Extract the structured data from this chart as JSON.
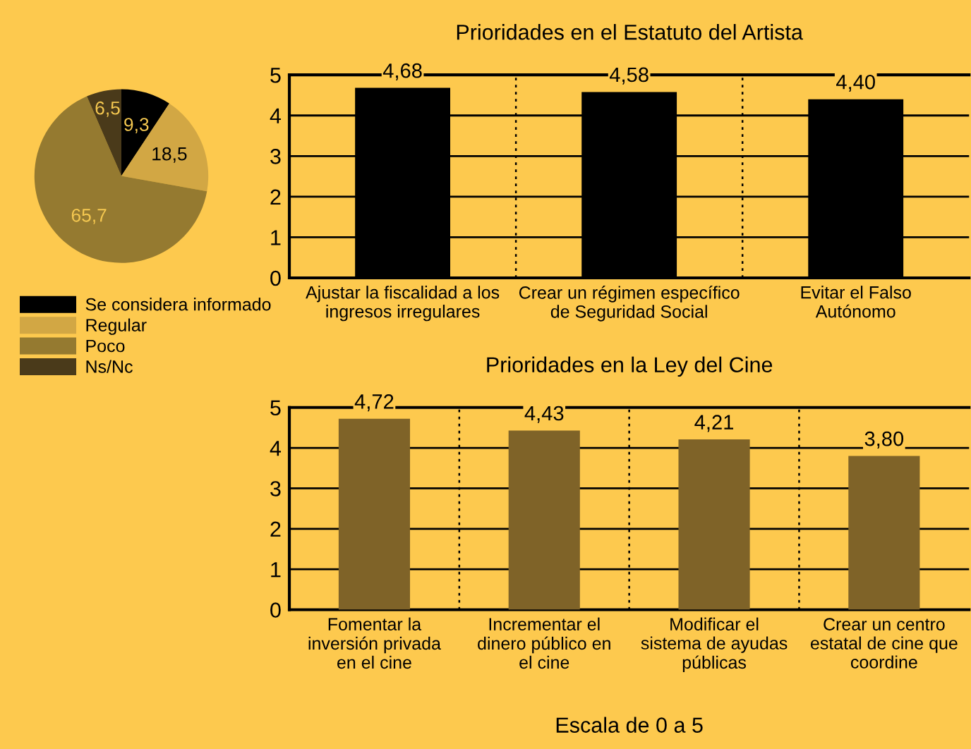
{
  "chart_data": [
    {
      "type": "pie",
      "categories": [
        "Se considera informado",
        "Regular",
        "Poco",
        "Ns/Nc"
      ],
      "values": [
        9.3,
        18.5,
        65.7,
        6.5
      ],
      "colors": [
        "#000000",
        "#d2a744",
        "#957a30",
        "#4a3a1a"
      ],
      "value_labels": [
        "9,3",
        "18,5",
        "65,7",
        "6,5"
      ],
      "legend": "bottom"
    },
    {
      "type": "bar",
      "title": "Prioridades en el Estatuto del Artista",
      "categories": [
        "Ajustar la fiscalidad a los\ningresos irregulares",
        "Crear un régimen específico\nde Seguridad Social",
        "Evitar el Falso\nAutónomo"
      ],
      "values": [
        4.68,
        4.58,
        4.4
      ],
      "color": "#000000",
      "value_labels": [
        "4,68",
        "4,58",
        "4,40"
      ],
      "ylim": [
        0,
        5
      ],
      "yticks": [
        0,
        1,
        2,
        3,
        4,
        5
      ],
      "grid": "y"
    },
    {
      "type": "bar",
      "title": "Prioridades en la Ley del Cine",
      "categories": [
        "Fomentar la\ninversión privada\nen el cine",
        "Incrementar el\ndinero público en\nel cine",
        "Modificar el\nsistema de ayudas\npúblicas",
        "Crear un centro\nestatal de cine que\ncoordine"
      ],
      "values": [
        4.72,
        4.43,
        4.21,
        3.8
      ],
      "color": "#7f6328",
      "value_labels": [
        "4,72",
        "4,43",
        "4,21",
        "3,80"
      ],
      "ylim": [
        0,
        5
      ],
      "yticks": [
        0,
        1,
        2,
        3,
        4,
        5
      ],
      "grid": "y",
      "annotations": [
        "Escala de 0 a 5"
      ]
    }
  ]
}
